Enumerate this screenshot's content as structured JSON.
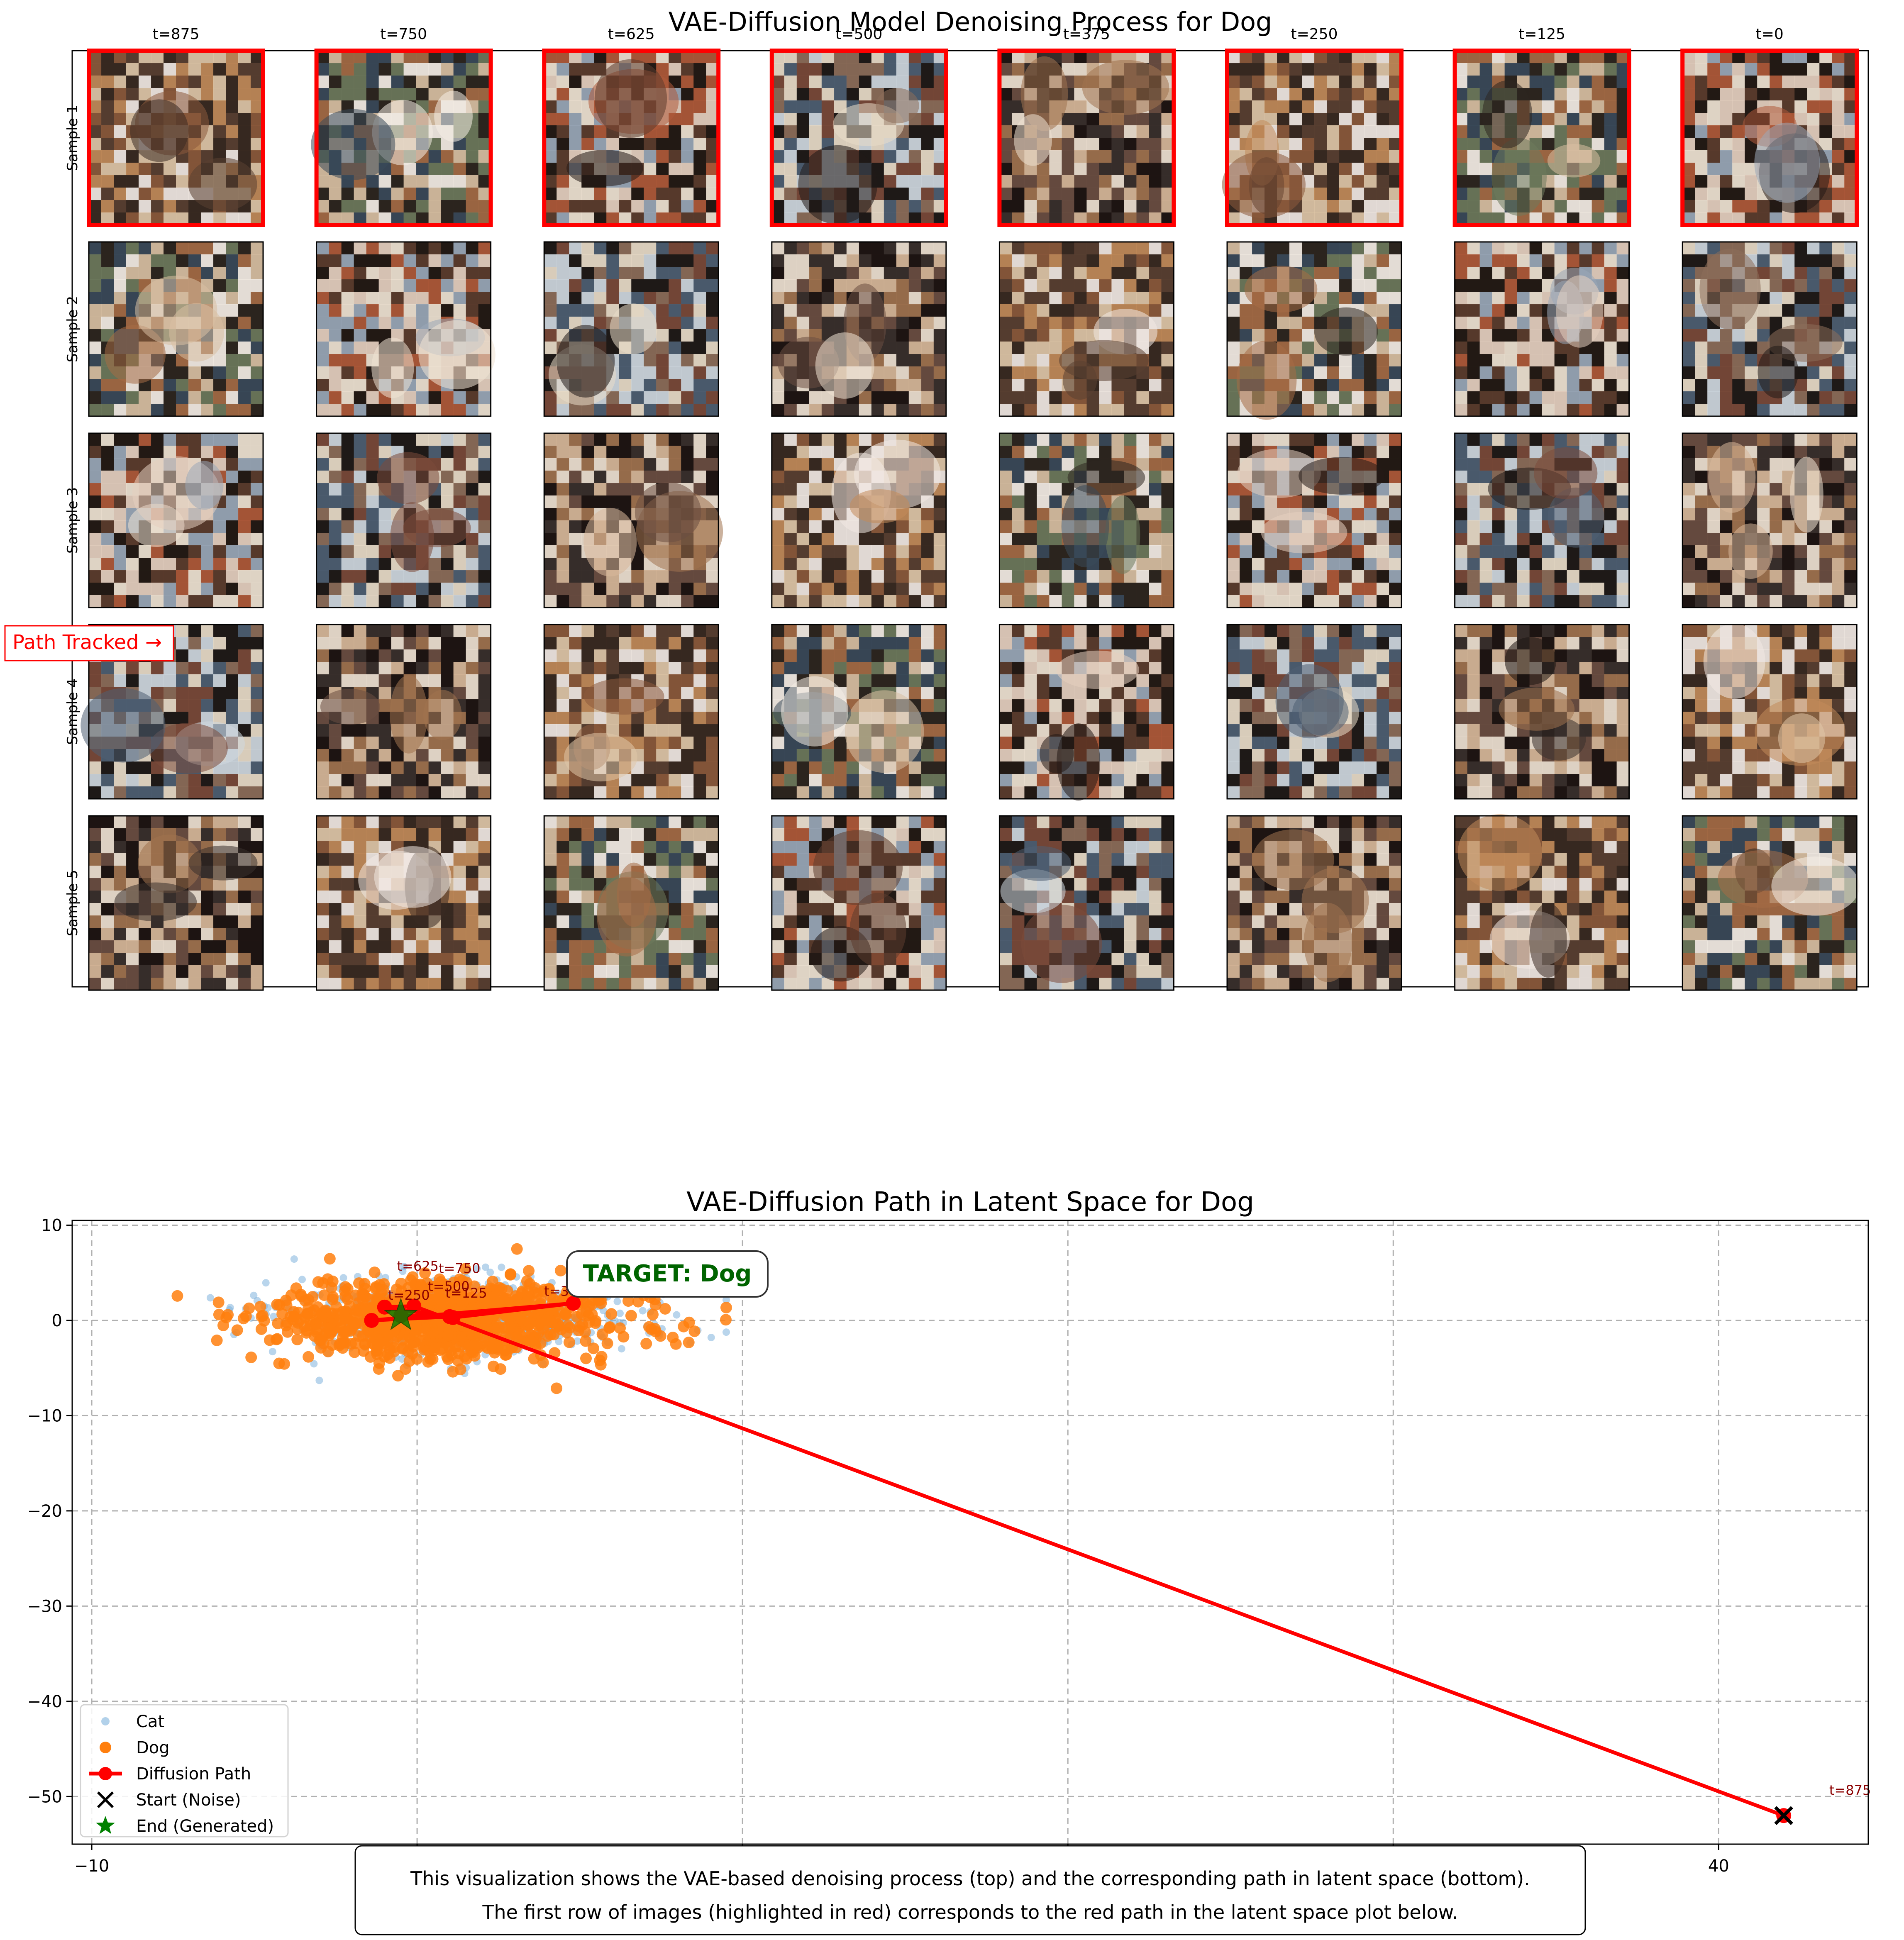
{
  "figure": {
    "top_title": "VAE-Diffusion Model Denoising Process for Dog",
    "path_tracked_label": "Path Tracked →",
    "caption_line1": "This visualization shows the VAE-based denoising process (top) and the corresponding path in latent space (bottom).",
    "caption_line2": "The first row of images (highlighted in red) corresponds to the red path in the latent space plot below."
  },
  "grid": {
    "columns": [
      "t=875",
      "t=750",
      "t=625",
      "t=500",
      "t=375",
      "t=250",
      "t=125",
      "t=0"
    ],
    "rows": [
      "Sample 1",
      "Sample 2",
      "Sample 3",
      "Sample 4",
      "Sample 5"
    ],
    "highlighted_row": 0,
    "highlight_color": "#ff0000"
  },
  "chart_data": {
    "type": "scatter",
    "title": "VAE-Diffusion Path in Latent Space for Dog",
    "xlabel": "",
    "ylabel": "",
    "xlim": [
      -10.6,
      44.6
    ],
    "ylim": [
      -55,
      10.5
    ],
    "xticks": [
      -10,
      0,
      10,
      20,
      30,
      40
    ],
    "yticks": [
      10,
      0,
      -10,
      -20,
      -30,
      -40,
      -50
    ],
    "grid": true,
    "legend_position": "lower-left",
    "target_label": "TARGET: Dog",
    "colors": {
      "cat": "#7fb2dc",
      "dog": "#ff7f0e",
      "path": "#ff0000",
      "end": "#008000",
      "target_text": "#006400",
      "label_text": "#8b0000"
    },
    "clusters": [
      {
        "name": "Cat",
        "center": [
          1.2,
          0.3
        ],
        "spread": [
          2.8,
          2.0
        ],
        "count": 700,
        "range_x": [
          -8.5,
          9.5
        ],
        "range_y": [
          -6.5,
          7.5
        ]
      },
      {
        "name": "Dog",
        "center": [
          0.8,
          0.2
        ],
        "spread": [
          2.6,
          2.0
        ],
        "count": 1000,
        "range_x": [
          -8,
          9.5
        ],
        "range_y": [
          -8.5,
          7.5
        ]
      }
    ],
    "path": [
      {
        "t": "t=875",
        "x": 42.0,
        "y": -52.0
      },
      {
        "t": "t=750",
        "x": -0.1,
        "y": 1.5
      },
      {
        "t": "t=625",
        "x": -1.0,
        "y": 1.4
      },
      {
        "t": "t=500",
        "x": 1.1,
        "y": 0.3
      },
      {
        "t": "t=375",
        "x": 4.8,
        "y": 1.8
      },
      {
        "t": "t=250",
        "x": -1.4,
        "y": 0.0
      },
      {
        "t": "t=125",
        "x": 1.0,
        "y": 0.4
      },
      {
        "t": "t=0",
        "x": -0.5,
        "y": 0.5
      }
    ],
    "start": {
      "x": 42.0,
      "y": -52.0
    },
    "end": {
      "x": -0.5,
      "y": 0.5
    },
    "legend": [
      {
        "key": "cat",
        "label": "Cat"
      },
      {
        "key": "dog",
        "label": "Dog"
      },
      {
        "key": "path",
        "label": "Diffusion Path"
      },
      {
        "key": "start",
        "label": "Start (Noise)"
      },
      {
        "key": "end",
        "label": "End (Generated)"
      }
    ]
  }
}
